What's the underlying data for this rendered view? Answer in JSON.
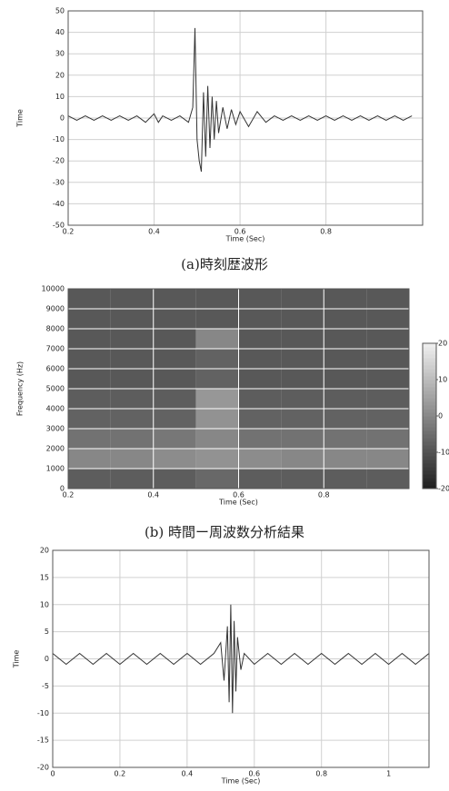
{
  "chart_data": [
    {
      "type": "line",
      "ylabel": "Time",
      "xlabel": "Time (Sec)",
      "caption": "(a)時刻歴波形",
      "color": "#333333",
      "grid": true,
      "xlim": [
        0.2,
        1.025
      ],
      "xticks": [
        0.2,
        0.4,
        0.6,
        0.8
      ],
      "ylim": [
        -50,
        50
      ],
      "yticks": [
        -50,
        -40,
        -30,
        -20,
        -10,
        0,
        10,
        20,
        30,
        40,
        50
      ],
      "x": [
        0.2,
        0.22,
        0.24,
        0.26,
        0.28,
        0.3,
        0.32,
        0.34,
        0.36,
        0.38,
        0.4,
        0.41,
        0.42,
        0.44,
        0.46,
        0.48,
        0.49,
        0.495,
        0.5,
        0.505,
        0.51,
        0.515,
        0.52,
        0.525,
        0.53,
        0.535,
        0.54,
        0.545,
        0.55,
        0.56,
        0.57,
        0.58,
        0.59,
        0.6,
        0.62,
        0.64,
        0.66,
        0.68,
        0.7,
        0.72,
        0.74,
        0.76,
        0.78,
        0.8,
        0.82,
        0.84,
        0.86,
        0.88,
        0.9,
        0.92,
        0.94,
        0.96,
        0.98,
        1.0
      ],
      "values": [
        1,
        -1,
        1,
        -1,
        1,
        -1,
        1,
        -1,
        1,
        -2,
        2,
        -2,
        1,
        -1,
        1,
        -2,
        5,
        42,
        -10,
        -20,
        -25,
        12,
        -18,
        15,
        -14,
        10,
        -10,
        8,
        -7,
        5,
        -5,
        4,
        -3,
        3,
        -4,
        3,
        -2,
        1,
        -1,
        1,
        -1,
        1,
        -1,
        1,
        -1,
        1,
        -1,
        1,
        -1,
        1,
        -1,
        1,
        -1,
        1
      ]
    },
    {
      "type": "heatmap",
      "ylabel": "Frequency (Hz)",
      "xlabel": "Time (Sec)",
      "caption": "(b) 時間ー周波数分析結果",
      "grid": true,
      "xlim": [
        0.2,
        1.0
      ],
      "xticks": [
        0.2,
        0.4,
        0.6,
        0.8
      ],
      "ylim": [
        0,
        10000
      ],
      "yticks": [
        0,
        1000,
        2000,
        3000,
        4000,
        5000,
        6000,
        7000,
        8000,
        9000,
        10000
      ],
      "xbins": [
        0.2,
        0.3,
        0.4,
        0.5,
        0.6,
        0.7,
        0.8,
        0.9,
        1.0
      ],
      "ybins": [
        0,
        1000,
        2000,
        3000,
        4000,
        5000,
        6000,
        7000,
        8000,
        9000,
        10000
      ],
      "clim": [
        -20,
        20
      ],
      "cticks": [
        -20,
        -10,
        0,
        10,
        20
      ],
      "values": [
        [
          -8,
          -8,
          -8,
          -6,
          -8,
          -8,
          -8,
          -8
        ],
        [
          0,
          0,
          1,
          2,
          1,
          0,
          0,
          0
        ],
        [
          -4,
          -4,
          -3,
          0,
          -4,
          -4,
          -4,
          -4
        ],
        [
          -7,
          -7,
          -7,
          2,
          -7,
          -7,
          -7,
          -7
        ],
        [
          -8,
          -8,
          -8,
          3,
          -8,
          -8,
          -8,
          -8
        ],
        [
          -9,
          -9,
          -9,
          -7,
          -9,
          -9,
          -9,
          -9
        ],
        [
          -9,
          -9,
          -9,
          -7,
          -9,
          -9,
          -9,
          -9
        ],
        [
          -9,
          -9,
          -9,
          0,
          -9,
          -9,
          -9,
          -9
        ],
        [
          -9,
          -9,
          -9,
          -9,
          -9,
          -9,
          -9,
          -9
        ],
        [
          -9,
          -9,
          -9,
          -9,
          -9,
          -9,
          -9,
          -9
        ]
      ]
    },
    {
      "type": "line",
      "ylabel": "Time",
      "xlabel": "Time (Sec)",
      "color": "#333333",
      "grid": true,
      "xlim": [
        0,
        1.12
      ],
      "xticks": [
        0,
        0.2,
        0.4,
        0.6,
        0.8,
        1
      ],
      "ylim": [
        -20,
        20
      ],
      "yticks": [
        -20,
        -15,
        -10,
        -5,
        0,
        5,
        10,
        15,
        20
      ],
      "x": [
        0,
        0.04,
        0.08,
        0.12,
        0.16,
        0.2,
        0.24,
        0.28,
        0.32,
        0.36,
        0.4,
        0.44,
        0.48,
        0.5,
        0.51,
        0.52,
        0.525,
        0.53,
        0.535,
        0.54,
        0.545,
        0.55,
        0.56,
        0.57,
        0.6,
        0.64,
        0.68,
        0.72,
        0.76,
        0.8,
        0.84,
        0.88,
        0.92,
        0.96,
        1.0,
        1.04,
        1.08,
        1.12
      ],
      "values": [
        1,
        -1,
        1,
        -1,
        1,
        -1,
        1,
        -1,
        1,
        -1,
        1,
        -1,
        1,
        3,
        -4,
        6,
        -8,
        10,
        -10,
        7,
        -6,
        4,
        -2,
        1,
        -1,
        1,
        -1,
        1,
        -1,
        1,
        -1,
        1,
        -1,
        1,
        -1,
        1,
        -1,
        1
      ]
    }
  ]
}
